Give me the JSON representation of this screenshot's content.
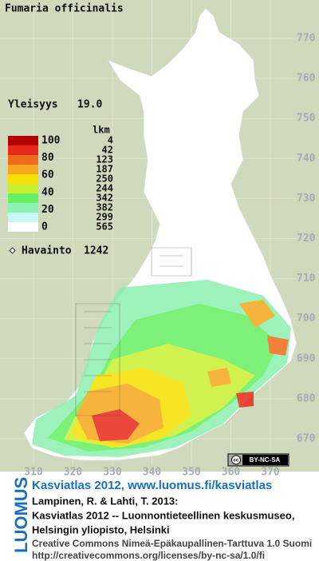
{
  "title": "Fumaria officinalis",
  "frequency": {
    "label": "Yleisyys",
    "value": "19.0"
  },
  "legend": {
    "scale": [
      100,
      80,
      60,
      40,
      20,
      0
    ],
    "count_header": "lkm",
    "colors": [
      "#b40000",
      "#e8281a",
      "#f06a1c",
      "#f5a81c",
      "#f6e000",
      "#c8f030",
      "#64f060",
      "#8cf0b0",
      "#c8f8f4",
      "#ffffff"
    ],
    "counts": [
      4,
      42,
      123,
      187,
      250,
      244,
      342,
      382,
      299,
      565
    ]
  },
  "observations": {
    "label": "Havainto",
    "value": 1242
  },
  "map": {
    "xticks": [
      310,
      320,
      330,
      340,
      350,
      360,
      370
    ],
    "yticks": [
      770,
      760,
      750,
      740,
      730,
      720,
      710,
      700,
      690,
      680,
      670
    ]
  },
  "license_badge": {
    "icon": "cc",
    "text": "BY-NC-SA"
  },
  "footer": {
    "logo": "LUOMUS",
    "link": "Kasviatlas 2012, www.luomus.fi/kasviatlas",
    "citation": [
      "Lampinen, R. & Lahti, T. 2013:",
      "Kasviatlas 2012 -- Luonnontieteellinen keskusmuseo,",
      "Helsingin yliopisto, Helsinki"
    ],
    "license": "Creative Commons Nimeä-Epäkaupallinen-Tarttuva 1.0 Suomi",
    "license_url": "http://creativecommons.org/licenses/by-nc-sa/1.0/fi"
  }
}
